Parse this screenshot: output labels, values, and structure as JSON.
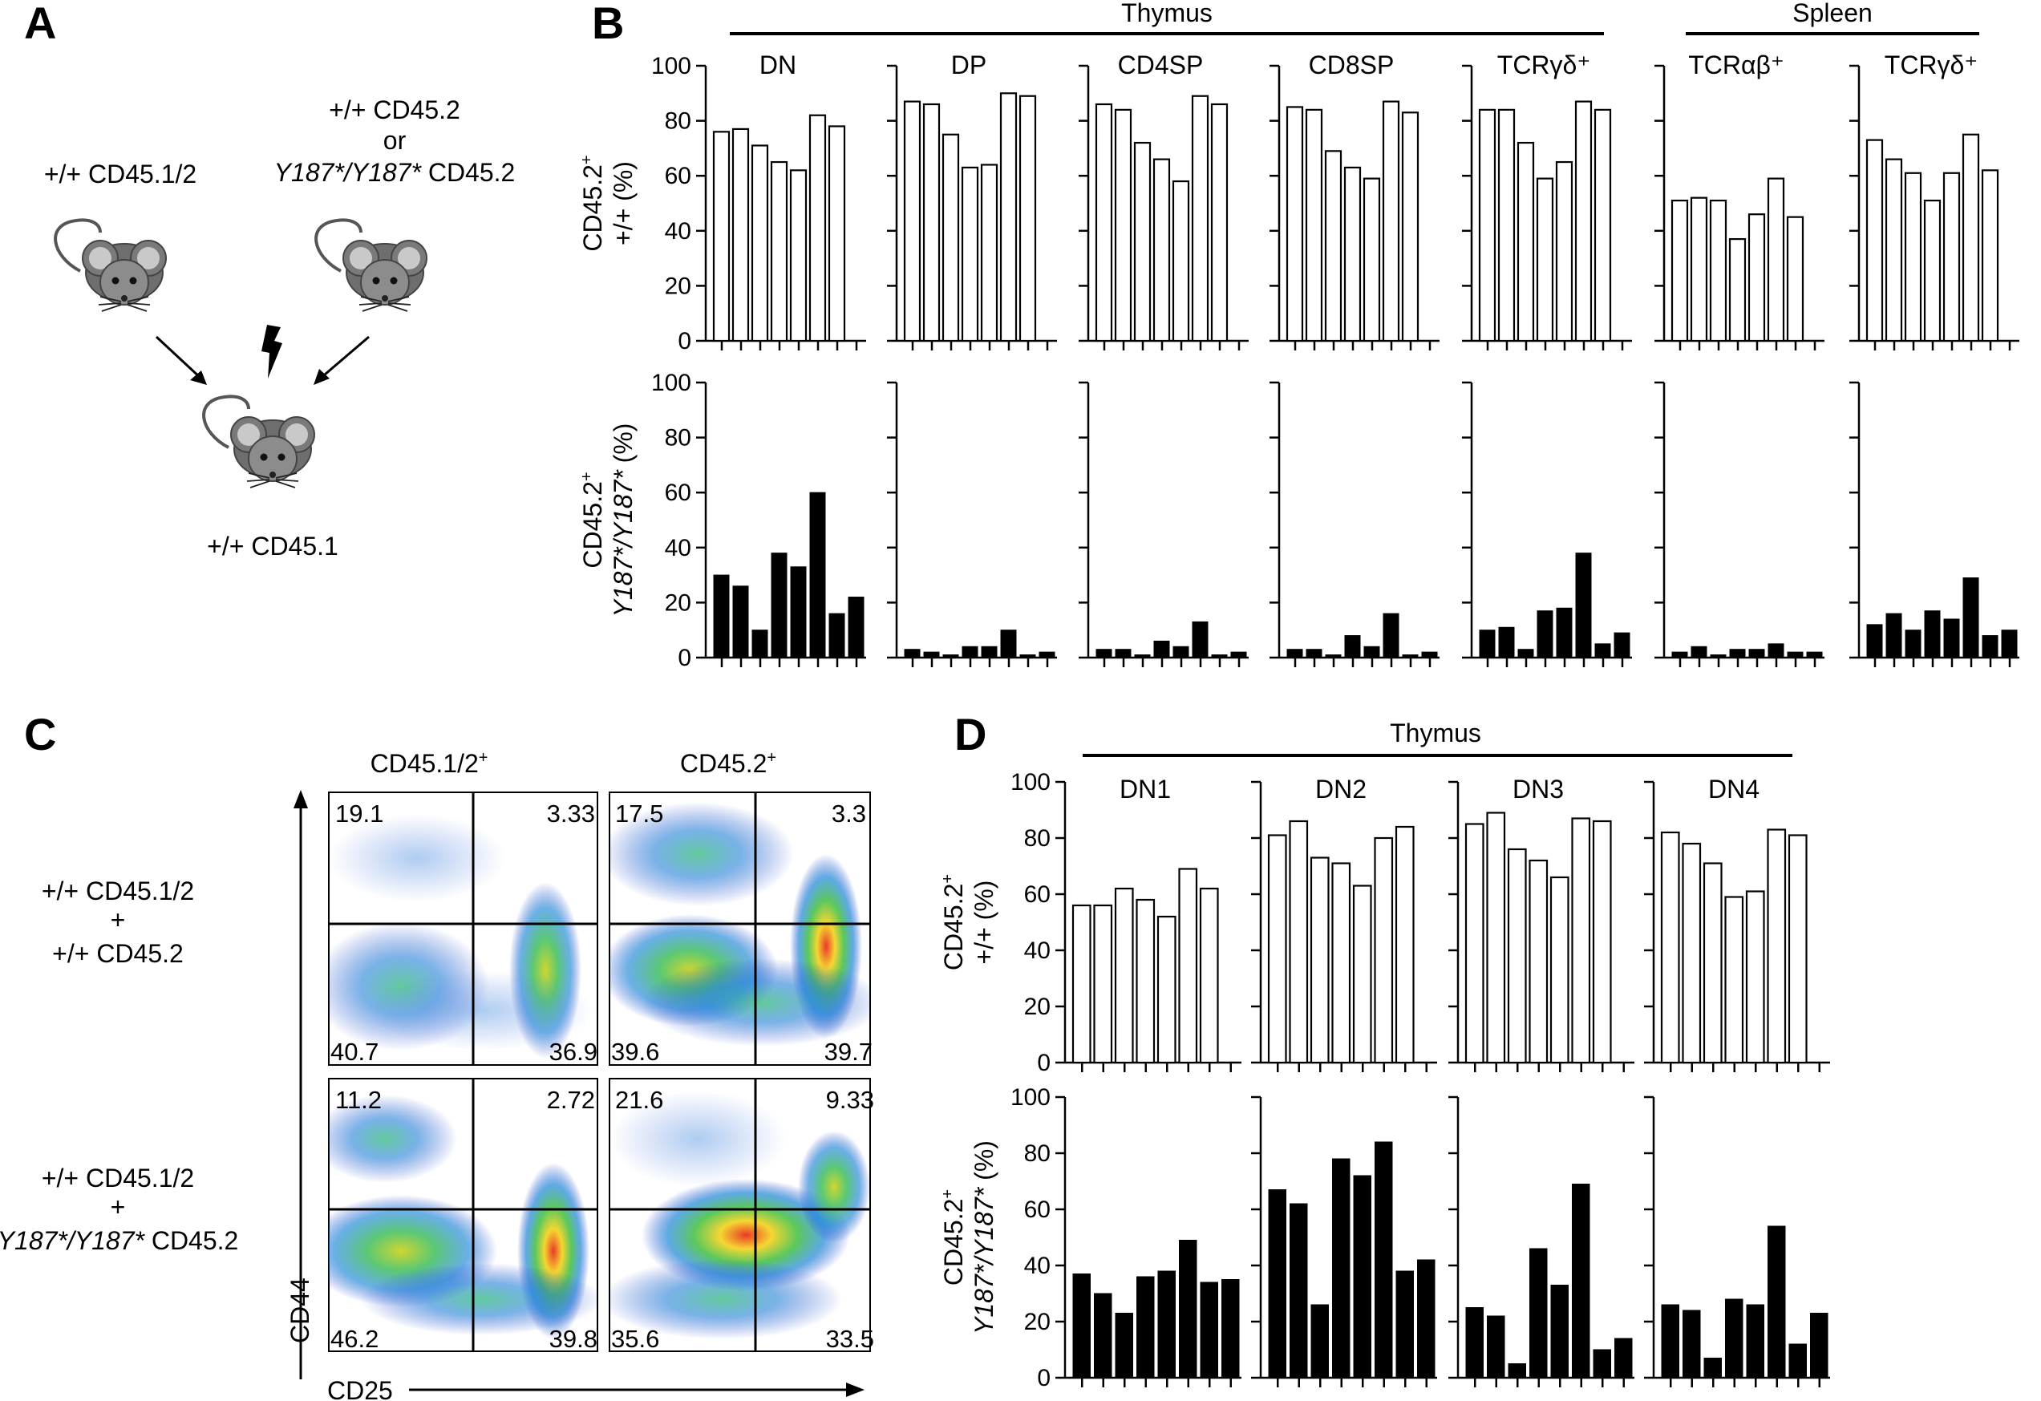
{
  "panels": {
    "a": {
      "letter": "A",
      "donor1": "+/+ CD45.1/2",
      "donor2_line1": "+/+ CD45.2",
      "donor2_line2": "or",
      "donor2_line3_italic": "Y187*/Y187*",
      "donor2_line3_rest": " CD45.2",
      "recipient": "+/+ CD45.1"
    },
    "b": {
      "letter": "B",
      "thymus": "Thymus",
      "spleen": "Spleen"
    },
    "c": {
      "letter": "C",
      "col1": "CD45.1/2",
      "col1_sup": "+",
      "col2": "CD45.2",
      "col2_sup": "+",
      "row1": [
        "+/+ CD45.1/2",
        "+",
        "+/+ CD45.2"
      ],
      "row2_l1": "+/+ CD45.1/2",
      "row2_l2": "+",
      "row2_l3_italic": "Y187*/Y187*",
      "row2_l3_rest": " CD45.2",
      "xaxis": "CD25",
      "yaxis": "CD44",
      "quadrants": [
        {
          "ul": "19.1",
          "ur": "3.33",
          "ll": "40.7",
          "lr": "36.9"
        },
        {
          "ul": "17.5",
          "ur": "3.3",
          "ll": "39.6",
          "lr": "39.7"
        },
        {
          "ul": "11.2",
          "ur": "2.72",
          "ll": "46.2",
          "lr": "39.8"
        },
        {
          "ul": "21.6",
          "ur": "9.33",
          "ll": "35.6",
          "lr": "33.5"
        }
      ]
    },
    "d": {
      "letter": "D",
      "thymus": "Thymus"
    }
  },
  "ylabels": {
    "wt_top": "CD45.2",
    "wt_sup": "+",
    "wt_bottom": "+/+ (%)",
    "mut_top": "CD45.2",
    "mut_sup": "+",
    "mut_italic": "Y187*/Y187*",
    "mut_rest": " (%)"
  },
  "colors": {
    "bar_open": "#ffffff",
    "bar_solid": "#000000",
    "axis": "#000000"
  },
  "chart_data": [
    {
      "type": "bar",
      "panel": "B",
      "ylim": [
        0,
        100
      ],
      "yticks": [
        0,
        20,
        40,
        60,
        80,
        100
      ],
      "ylabel_top": "CD45.2+ +/+ (%)",
      "ylabel_bottom": "CD45.2+ Y187*/Y187* (%)",
      "groups": [
        {
          "title": "DN",
          "tissue": "Thymus",
          "wt": [
            76,
            77,
            71,
            65,
            62,
            82,
            78
          ],
          "mut": [
            30,
            26,
            10,
            38,
            33,
            60,
            16,
            22
          ]
        },
        {
          "title": "DP",
          "tissue": "Thymus",
          "wt": [
            87,
            86,
            75,
            63,
            64,
            90,
            89
          ],
          "mut": [
            3,
            2,
            1,
            4,
            4,
            10,
            1,
            2
          ]
        },
        {
          "title": "CD4SP",
          "tissue": "Thymus",
          "wt": [
            86,
            84,
            72,
            66,
            58,
            89,
            86
          ],
          "mut": [
            3,
            3,
            1,
            6,
            4,
            13,
            1,
            2
          ]
        },
        {
          "title": "CD8SP",
          "tissue": "Thymus",
          "wt": [
            85,
            84,
            69,
            63,
            59,
            87,
            83
          ],
          "mut": [
            3,
            3,
            1,
            8,
            4,
            16,
            1,
            2
          ]
        },
        {
          "title": "TCRγδ⁺",
          "tissue": "Thymus",
          "wt": [
            84,
            84,
            72,
            59,
            65,
            87,
            84
          ],
          "mut": [
            10,
            11,
            3,
            17,
            18,
            38,
            5,
            9
          ]
        },
        {
          "title": "TCRαβ⁺",
          "tissue": "Spleen",
          "wt": [
            51,
            52,
            51,
            37,
            46,
            59,
            45
          ],
          "mut": [
            2,
            4,
            1,
            3,
            3,
            5,
            2,
            2
          ]
        },
        {
          "title": "TCRγδ⁺",
          "tissue": "Spleen",
          "wt": [
            73,
            66,
            61,
            51,
            61,
            75,
            62
          ],
          "mut": [
            12,
            16,
            10,
            17,
            14,
            29,
            8,
            10
          ]
        }
      ]
    },
    {
      "type": "bar",
      "panel": "D",
      "ylim": [
        0,
        100
      ],
      "yticks": [
        0,
        20,
        40,
        60,
        80,
        100
      ],
      "ylabel_top": "CD45.2+ +/+ (%)",
      "ylabel_bottom": "CD45.2+ Y187*/Y187* (%)",
      "groups": [
        {
          "title": "DN1",
          "tissue": "Thymus",
          "wt": [
            56,
            56,
            62,
            58,
            52,
            69,
            62
          ],
          "mut": [
            37,
            30,
            23,
            36,
            38,
            49,
            34,
            35
          ]
        },
        {
          "title": "DN2",
          "tissue": "Thymus",
          "wt": [
            81,
            86,
            73,
            71,
            63,
            80,
            84
          ],
          "mut": [
            67,
            62,
            26,
            78,
            72,
            84,
            38,
            42
          ]
        },
        {
          "title": "DN3",
          "tissue": "Thymus",
          "wt": [
            85,
            89,
            76,
            72,
            66,
            87,
            86
          ],
          "mut": [
            25,
            22,
            5,
            46,
            33,
            69,
            10,
            14
          ]
        },
        {
          "title": "DN4",
          "tissue": "Thymus",
          "wt": [
            82,
            78,
            71,
            59,
            61,
            83,
            81
          ],
          "mut": [
            26,
            24,
            7,
            28,
            26,
            54,
            12,
            23
          ]
        }
      ]
    }
  ]
}
